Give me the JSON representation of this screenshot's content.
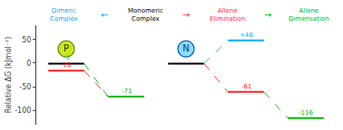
{
  "chart_data": {
    "type": "levels",
    "ylabel": "Relative ΔG (kJmol⁻¹)",
    "categories": [
      null,
      null,
      null,
      null,
      null
    ],
    "ylim": [
      -130,
      80
    ],
    "yticks": [
      -100,
      -50,
      0,
      50
    ],
    "grid": false,
    "tick_labels": "y",
    "data_labels": true,
    "series": [
      {
        "color": "#000000",
        "label_color": "#00aaff",
        "values": [
          -1,
          null,
          -1,
          null,
          null
        ],
        "value_labels": [
          "-1",
          null,
          null,
          null,
          null
        ]
      },
      {
        "color": "#ff2222",
        "values": [
          -16,
          null,
          null,
          -61,
          null
        ],
        "value_labels": [
          "-16",
          null,
          null,
          "-61",
          null
        ]
      },
      {
        "color": "#00bb00",
        "values": [
          null,
          -71,
          null,
          null,
          -116
        ],
        "value_labels": [
          null,
          "-71",
          null,
          null,
          "-116"
        ]
      },
      {
        "color": "#00aaff",
        "values": [
          null,
          null,
          null,
          48,
          null
        ],
        "value_labels": [
          null,
          null,
          null,
          "+48",
          null
        ]
      }
    ],
    "links": [
      {
        "from": [
          0,
          -1
        ],
        "to": [
          1,
          -71
        ],
        "color": "#00bb00"
      },
      {
        "from": [
          0,
          -16
        ],
        "to": [
          1,
          -71
        ],
        "color": "#ff2222"
      },
      {
        "from": [
          2,
          -1
        ],
        "to": [
          3,
          48
        ],
        "color": "#00aaff"
      },
      {
        "from": [
          2,
          -1
        ],
        "to": [
          3,
          -61
        ],
        "color": "#ff2222"
      },
      {
        "from": [
          3,
          -61
        ],
        "to": [
          4,
          -116
        ],
        "color": "#00bb00"
      }
    ],
    "circles": [
      {
        "text": "P",
        "position": 0,
        "y": 30,
        "color": "#c8e820",
        "edge_color": "#6a8000",
        "text_color": "#1a4000"
      },
      {
        "text": "N",
        "position": 2,
        "y": 30,
        "color": "#88ddff",
        "edge_color": "#0055aa",
        "text_color": "#003377"
      }
    ],
    "headers": [
      {
        "text": "Dimeric\nComplex",
        "color": "#00aaff"
      },
      {
        "text": "←",
        "color": "#00aaff"
      },
      {
        "text": "Monomeric\nComplex",
        "color": "#000000"
      },
      {
        "text": "→",
        "color": "#ff3333"
      },
      {
        "text": "Allene\nElimination",
        "color": "#ff3333"
      },
      {
        "text": "→",
        "color": "#00bb00"
      },
      {
        "text": "Allene\nDimerisation",
        "color": "#00bb00"
      }
    ]
  }
}
